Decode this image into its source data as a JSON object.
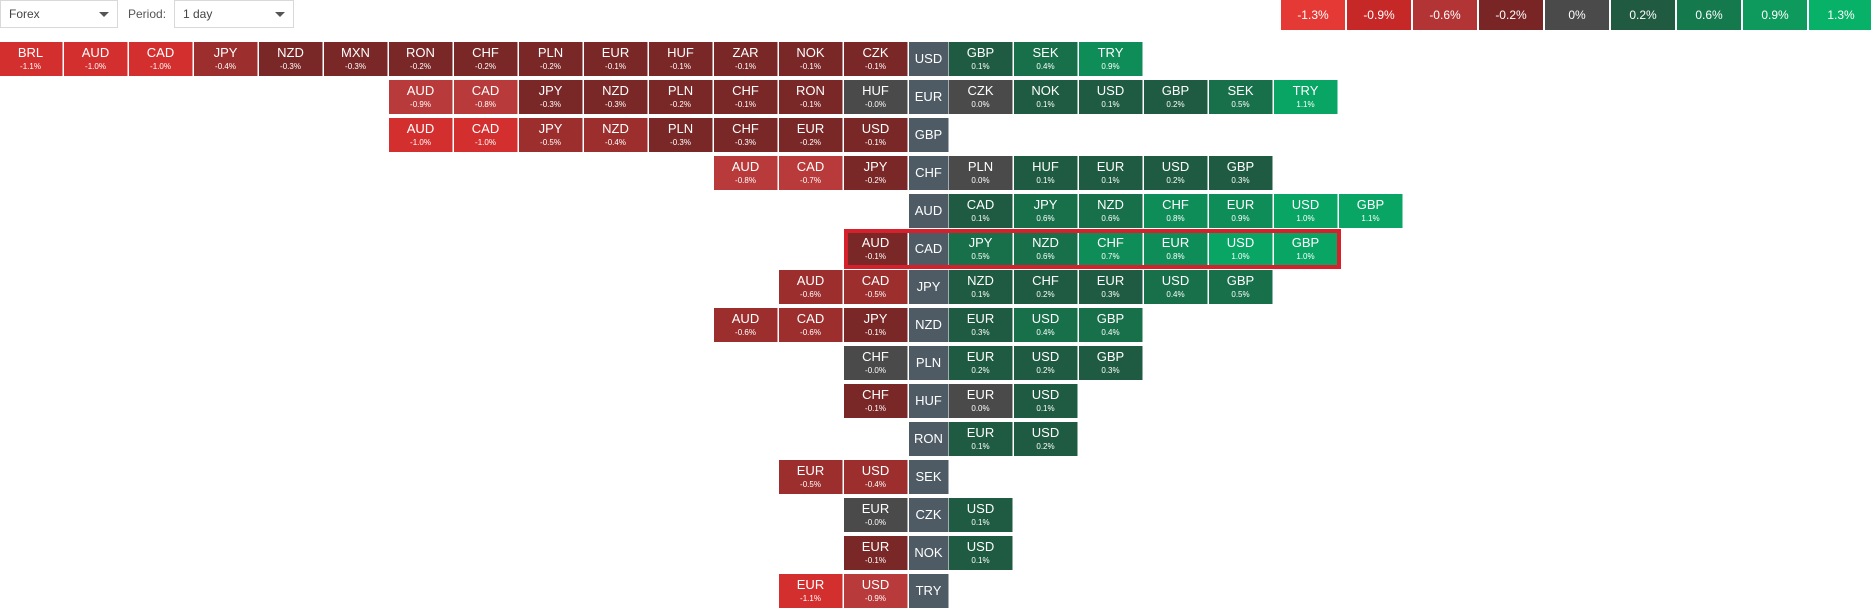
{
  "toolbar": {
    "market_value": "Forex",
    "period_label": "Period:",
    "period_value": "1 day"
  },
  "legend": [
    {
      "label": "-1.3%",
      "color": "#e53935"
    },
    {
      "label": "-0.9%",
      "color": "#c62828"
    },
    {
      "label": "-0.6%",
      "color": "#b23434"
    },
    {
      "label": "-0.2%",
      "color": "#7a2525"
    },
    {
      "label": "0%",
      "color": "#4a4a4a"
    },
    {
      "label": "0.2%",
      "color": "#1f5a41"
    },
    {
      "label": "0.6%",
      "color": "#147a4e"
    },
    {
      "label": "0.9%",
      "color": "#0e9a5c"
    },
    {
      "label": "1.3%",
      "color": "#07b167"
    }
  ],
  "rows": [
    {
      "base": "USD",
      "left": [
        [
          "BRL",
          "-1.1%"
        ],
        [
          "AUD",
          "-1.0%"
        ],
        [
          "CAD",
          "-1.0%"
        ],
        [
          "JPY",
          "-0.4%"
        ],
        [
          "NZD",
          "-0.3%"
        ],
        [
          "MXN",
          "-0.3%"
        ],
        [
          "RON",
          "-0.2%"
        ],
        [
          "CHF",
          "-0.2%"
        ],
        [
          "PLN",
          "-0.2%"
        ],
        [
          "EUR",
          "-0.1%"
        ],
        [
          "HUF",
          "-0.1%"
        ],
        [
          "ZAR",
          "-0.1%"
        ],
        [
          "NOK",
          "-0.1%"
        ],
        [
          "CZK",
          "-0.1%"
        ]
      ],
      "right": [
        [
          "GBP",
          "0.1%"
        ],
        [
          "SEK",
          "0.4%"
        ],
        [
          "TRY",
          "0.9%"
        ]
      ]
    },
    {
      "base": "EUR",
      "left": [
        [
          "AUD",
          "-0.9%"
        ],
        [
          "CAD",
          "-0.8%"
        ],
        [
          "JPY",
          "-0.3%"
        ],
        [
          "NZD",
          "-0.3%"
        ],
        [
          "PLN",
          "-0.2%"
        ],
        [
          "CHF",
          "-0.1%"
        ],
        [
          "RON",
          "-0.1%"
        ],
        [
          "HUF",
          "-0.0%"
        ]
      ],
      "right": [
        [
          "CZK",
          "0.0%"
        ],
        [
          "NOK",
          "0.1%"
        ],
        [
          "USD",
          "0.1%"
        ],
        [
          "GBP",
          "0.2%"
        ],
        [
          "SEK",
          "0.5%"
        ],
        [
          "TRY",
          "1.1%"
        ]
      ]
    },
    {
      "base": "GBP",
      "left": [
        [
          "AUD",
          "-1.0%"
        ],
        [
          "CAD",
          "-1.0%"
        ],
        [
          "JPY",
          "-0.5%"
        ],
        [
          "NZD",
          "-0.4%"
        ],
        [
          "PLN",
          "-0.3%"
        ],
        [
          "CHF",
          "-0.3%"
        ],
        [
          "EUR",
          "-0.2%"
        ],
        [
          "USD",
          "-0.1%"
        ]
      ],
      "right": []
    },
    {
      "base": "CHF",
      "left": [
        [
          "AUD",
          "-0.8%"
        ],
        [
          "CAD",
          "-0.7%"
        ],
        [
          "JPY",
          "-0.2%"
        ]
      ],
      "right": [
        [
          "PLN",
          "0.0%"
        ],
        [
          "HUF",
          "0.1%"
        ],
        [
          "EUR",
          "0.1%"
        ],
        [
          "USD",
          "0.2%"
        ],
        [
          "GBP",
          "0.3%"
        ]
      ]
    },
    {
      "base": "AUD",
      "left": [],
      "right": [
        [
          "CAD",
          "0.1%"
        ],
        [
          "JPY",
          "0.6%"
        ],
        [
          "NZD",
          "0.6%"
        ],
        [
          "CHF",
          "0.8%"
        ],
        [
          "EUR",
          "0.9%"
        ],
        [
          "USD",
          "1.0%"
        ],
        [
          "GBP",
          "1.1%"
        ]
      ]
    },
    {
      "base": "CAD",
      "left": [
        [
          "AUD",
          "-0.1%"
        ]
      ],
      "right": [
        [
          "JPY",
          "0.5%"
        ],
        [
          "NZD",
          "0.6%"
        ],
        [
          "CHF",
          "0.7%"
        ],
        [
          "EUR",
          "0.8%"
        ],
        [
          "USD",
          "1.0%"
        ],
        [
          "GBP",
          "1.0%"
        ]
      ]
    },
    {
      "base": "JPY",
      "left": [
        [
          "AUD",
          "-0.6%"
        ],
        [
          "CAD",
          "-0.5%"
        ]
      ],
      "right": [
        [
          "NZD",
          "0.1%"
        ],
        [
          "CHF",
          "0.2%"
        ],
        [
          "EUR",
          "0.3%"
        ],
        [
          "USD",
          "0.4%"
        ],
        [
          "GBP",
          "0.5%"
        ]
      ]
    },
    {
      "base": "NZD",
      "left": [
        [
          "AUD",
          "-0.6%"
        ],
        [
          "CAD",
          "-0.6%"
        ],
        [
          "JPY",
          "-0.1%"
        ]
      ],
      "right": [
        [
          "EUR",
          "0.3%"
        ],
        [
          "USD",
          "0.4%"
        ],
        [
          "GBP",
          "0.4%"
        ]
      ]
    },
    {
      "base": "PLN",
      "left": [
        [
          "CHF",
          "-0.0%"
        ]
      ],
      "right": [
        [
          "EUR",
          "0.2%"
        ],
        [
          "USD",
          "0.2%"
        ],
        [
          "GBP",
          "0.3%"
        ]
      ]
    },
    {
      "base": "HUF",
      "left": [
        [
          "CHF",
          "-0.1%"
        ]
      ],
      "right": [
        [
          "EUR",
          "0.0%"
        ],
        [
          "USD",
          "0.1%"
        ]
      ]
    },
    {
      "base": "RON",
      "left": [],
      "right": [
        [
          "EUR",
          "0.1%"
        ],
        [
          "USD",
          "0.2%"
        ]
      ]
    },
    {
      "base": "SEK",
      "left": [
        [
          "EUR",
          "-0.5%"
        ],
        [
          "USD",
          "-0.4%"
        ]
      ],
      "right": []
    },
    {
      "base": "CZK",
      "left": [
        [
          "EUR",
          "-0.0%"
        ]
      ],
      "right": [
        [
          "USD",
          "0.1%"
        ]
      ]
    },
    {
      "base": "NOK",
      "left": [
        [
          "EUR",
          "-0.1%"
        ]
      ],
      "right": [
        [
          "USD",
          "0.1%"
        ]
      ]
    },
    {
      "base": "TRY",
      "left": [
        [
          "EUR",
          "-1.1%"
        ],
        [
          "USD",
          "-0.9%"
        ]
      ],
      "right": []
    }
  ]
}
